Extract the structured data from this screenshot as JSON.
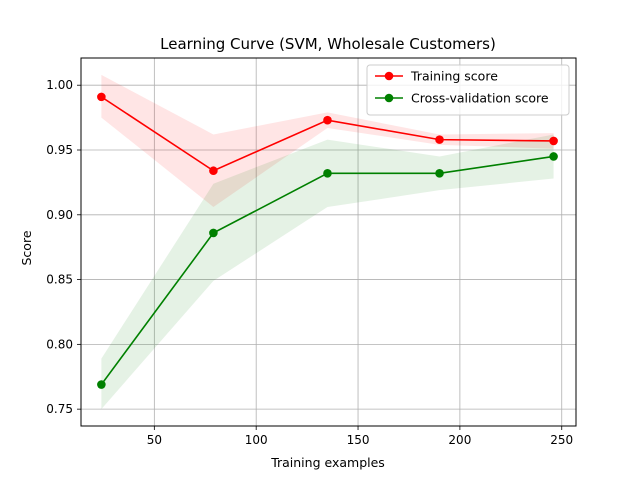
{
  "chart_data": {
    "type": "line",
    "title": "Learning Curve (SVM, Wholesale Customers)",
    "xlabel": "Training examples",
    "ylabel": "Score",
    "xlim": [
      14,
      257
    ],
    "ylim": [
      0.737,
      1.021
    ],
    "xticks": [
      50,
      100,
      150,
      200,
      250
    ],
    "yticks": [
      0.75,
      0.8,
      0.85,
      0.9,
      0.95,
      1.0
    ],
    "xtick_labels": [
      "50",
      "100",
      "150",
      "200",
      "250"
    ],
    "ytick_labels": [
      "0.75",
      "0.80",
      "0.85",
      "0.90",
      "0.95",
      "1.00"
    ],
    "grid": true,
    "legend_position": "top-right",
    "x": [
      24,
      79,
      135,
      190,
      246
    ],
    "series": [
      {
        "name": "Training score",
        "color": "#ff0000",
        "band_color": "#ff0000",
        "values": [
          0.991,
          0.934,
          0.973,
          0.958,
          0.957
        ],
        "upper": [
          1.008,
          0.962,
          0.979,
          0.962,
          0.963
        ],
        "lower": [
          0.975,
          0.906,
          0.967,
          0.954,
          0.951
        ]
      },
      {
        "name": "Cross-validation score",
        "color": "#008000",
        "band_color": "#008000",
        "values": [
          0.769,
          0.886,
          0.932,
          0.932,
          0.945
        ],
        "upper": [
          0.789,
          0.924,
          0.958,
          0.945,
          0.962
        ],
        "lower": [
          0.75,
          0.849,
          0.906,
          0.919,
          0.928
        ]
      }
    ]
  }
}
